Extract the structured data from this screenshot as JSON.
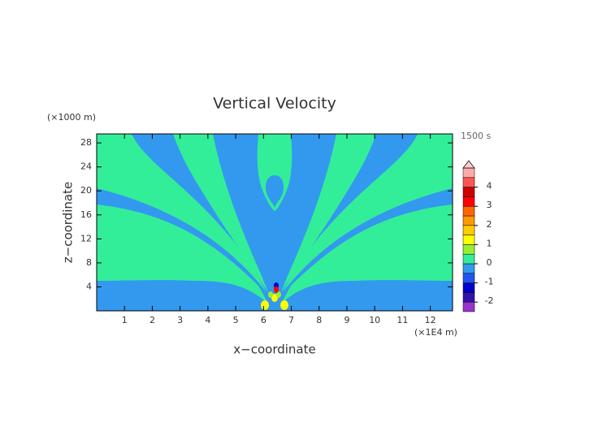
{
  "chart_data": {
    "type": "contour",
    "title": "Vertical Velocity",
    "y_unit": "(×1000 m)",
    "time_label": "1500 s",
    "xlabel": "x−coordinate",
    "ylabel": "z−coordinate",
    "x_unit": "(×1E4 m)",
    "xlim": [
      0,
      12.8
    ],
    "ylim": [
      0,
      29.5
    ],
    "xticks": [
      1,
      2,
      3,
      4,
      5,
      6,
      7,
      8,
      9,
      10,
      11,
      12
    ],
    "yticks": [
      4,
      8,
      12,
      16,
      20,
      24,
      28
    ],
    "colorbar": {
      "levels": [
        -2.5,
        -2,
        -1.5,
        -1,
        -0.5,
        0,
        0.5,
        1,
        1.5,
        2,
        2.5,
        3,
        3.5,
        4,
        4.5,
        5
      ],
      "colors": [
        "#9933cc",
        "#3311aa",
        "#0000cc",
        "#2255ee",
        "#3399ee",
        "#33ee99",
        "#99ee33",
        "#ffff00",
        "#ffcc00",
        "#ff9900",
        "#ff6600",
        "#ff0000",
        "#cc0000",
        "#ff5555",
        "#ffaaaa"
      ],
      "over_color": "#ffcccc",
      "ticks": [
        -2,
        -1,
        0,
        1,
        2,
        3,
        4
      ]
    }
  }
}
